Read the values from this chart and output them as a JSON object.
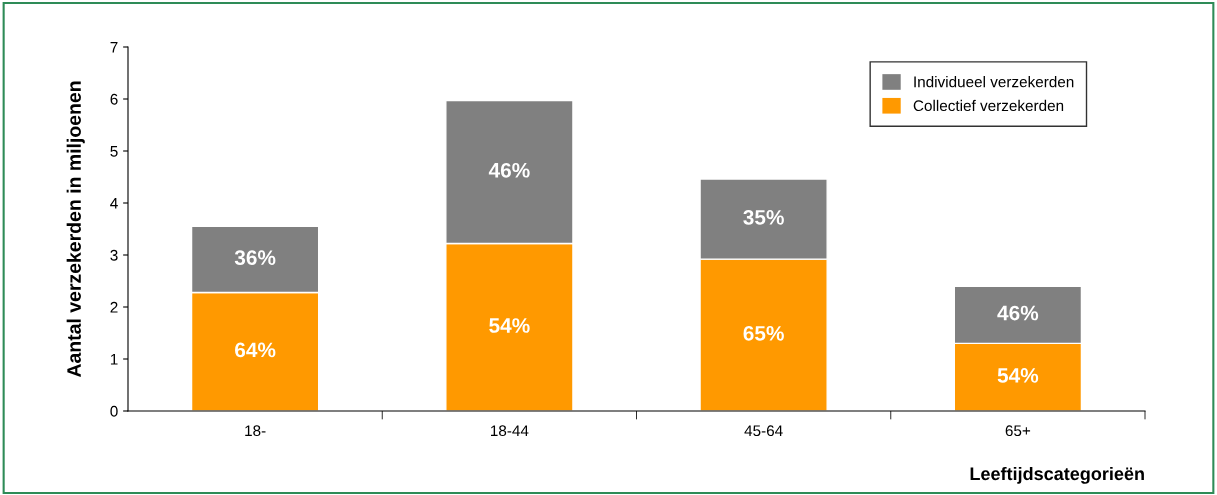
{
  "chart_data": {
    "type": "bar",
    "stacked": true,
    "xlabel": "Leeftijdscategorieën",
    "ylabel": "Aantal verzekerden in miljoenen",
    "categories": [
      "18-",
      "18-44",
      "45-64",
      "65+"
    ],
    "series": [
      {
        "name": "Collectief verzekerden",
        "color": "#ff9900",
        "values": [
          2.28,
          3.22,
          2.92,
          1.3
        ]
      },
      {
        "name": "Individueel verzekerden",
        "color": "#808080",
        "values": [
          1.27,
          2.75,
          1.54,
          1.1
        ]
      }
    ],
    "annotations": [
      "64%",
      "54%",
      "65%",
      "54%",
      "36%",
      "46%",
      "35%",
      "46%"
    ],
    "ylim": [
      0,
      7
    ],
    "yticks": [
      0,
      1,
      2,
      3,
      4,
      5,
      6,
      7
    ],
    "grid": false,
    "legend": "top right"
  }
}
